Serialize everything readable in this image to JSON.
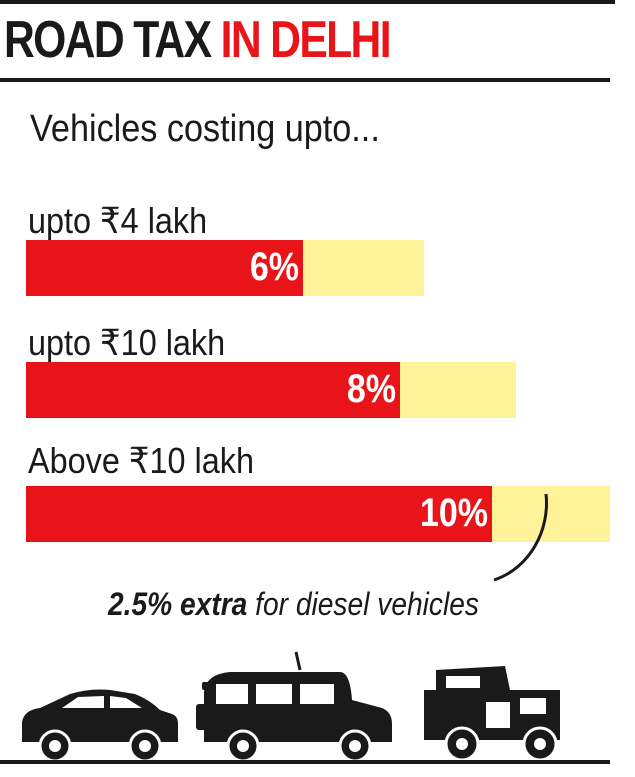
{
  "header": {
    "title_part1": "ROAD TAX",
    "title_part2": "IN DELHI"
  },
  "subtitle": "Vehicles costing upto...",
  "note": {
    "bold": "2.5% extra",
    "rest": " for diesel vehicles"
  },
  "colors": {
    "accent_red": "#e8141a",
    "bar_background_yellow": "#fff39a",
    "text_dark": "#1a1a1a"
  },
  "icons": [
    "car-icon",
    "suv-icon",
    "jeep-icon"
  ],
  "chart_data": {
    "type": "bar",
    "orientation": "horizontal",
    "title": "ROAD TAX IN DELHI",
    "subtitle": "Vehicles costing upto...",
    "categories": [
      "upto ₹4 lakh",
      "upto ₹10 lakh",
      "Above ₹10 lakh"
    ],
    "values": [
      6,
      8,
      10
    ],
    "value_labels": [
      "6%",
      "8%",
      "10%"
    ],
    "unit": "%",
    "annotation": "2.5% extra for diesel vehicles",
    "grid": false
  }
}
